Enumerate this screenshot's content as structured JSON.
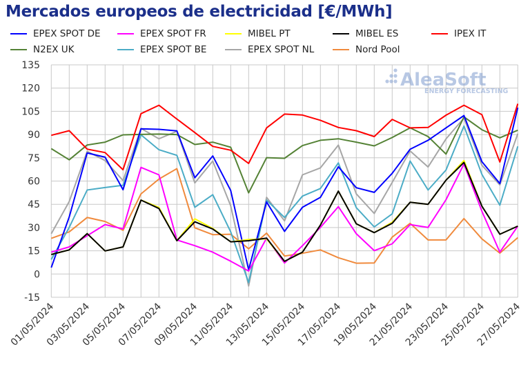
{
  "title": "Mercados europeos de electricidad [€/MWh]",
  "watermark": {
    "brand": "AleaSoft",
    "tagline": "ENERGY FORECASTING"
  },
  "chart_data": {
    "type": "line",
    "title": "Mercados europeos de electricidad [€/MWh]",
    "xlabel": "",
    "ylabel": "",
    "ylim": [
      -15,
      135
    ],
    "yticks": [
      -15,
      0,
      15,
      30,
      45,
      60,
      75,
      90,
      105,
      120,
      135
    ],
    "grid": true,
    "legend_position": "top",
    "x": [
      "01/05/2024",
      "02/05/2024",
      "03/05/2024",
      "04/05/2024",
      "05/05/2024",
      "06/05/2024",
      "07/05/2024",
      "08/05/2024",
      "09/05/2024",
      "10/05/2024",
      "11/05/2024",
      "12/05/2024",
      "13/05/2024",
      "14/05/2024",
      "15/05/2024",
      "16/05/2024",
      "17/05/2024",
      "18/05/2024",
      "19/05/2024",
      "20/05/2024",
      "21/05/2024",
      "22/05/2024",
      "23/05/2024",
      "24/05/2024",
      "25/05/2024",
      "26/05/2024",
      "27/05/2024"
    ],
    "xtick_labels": [
      "01/05/2024",
      "03/05/2024",
      "05/05/2024",
      "07/05/2024",
      "09/05/2024",
      "11/05/2024",
      "13/05/2024",
      "15/05/2024",
      "17/05/2024",
      "19/05/2024",
      "21/05/2024",
      "23/05/2024",
      "25/05/2024",
      "27/05/2024"
    ],
    "series": [
      {
        "name": "EPEX SPOT DE",
        "color": "#0000ff",
        "values": [
          4.2,
          36.8,
          78.1,
          75.4,
          54.4,
          93.7,
          93.4,
          92.4,
          62.1,
          76.2,
          53.9,
          2.7,
          46.5,
          27.5,
          43.1,
          49.5,
          69.2,
          55.7,
          52.7,
          65.0,
          80.5,
          86.3,
          94.3,
          102.3,
          72.5,
          58.4,
          107.4
        ]
      },
      {
        "name": "EPEX SPOT FR",
        "color": "#ff00ff",
        "values": [
          14.1,
          17.5,
          24.7,
          31.9,
          29.1,
          68.8,
          64.0,
          22.0,
          18.3,
          14.1,
          8.3,
          1.9,
          23.2,
          7.1,
          18.3,
          30.1,
          43.5,
          26.0,
          15.1,
          19.5,
          31.9,
          30.1,
          48.0,
          71.0,
          40.5,
          14.1,
          30.9
        ]
      },
      {
        "name": "MIBEL PT",
        "color": "#ffff00",
        "values": [
          12.6,
          15.6,
          26.1,
          14.9,
          17.5,
          47.7,
          43.0,
          21.5,
          35.6,
          29.4,
          20.8,
          22.3,
          22.7,
          8.2,
          14.1,
          31.6,
          53.5,
          32.4,
          26.7,
          33.4,
          46.3,
          45.0,
          60.6,
          73.2,
          43.8,
          25.7,
          30.9
        ]
      },
      {
        "name": "MIBEL ES",
        "color": "#000000",
        "values": [
          12.6,
          15.6,
          26.1,
          14.9,
          17.5,
          47.7,
          42.3,
          21.5,
          33.7,
          29.0,
          20.8,
          21.5,
          23.2,
          8.2,
          14.1,
          31.6,
          53.5,
          32.4,
          26.7,
          32.7,
          46.3,
          45.0,
          60.6,
          72.0,
          43.8,
          25.7,
          30.9
        ]
      },
      {
        "name": "IPEX IT",
        "color": "#ff0000",
        "values": [
          89.5,
          92.5,
          80.6,
          78.4,
          67.3,
          103.5,
          108.9,
          100.0,
          91.3,
          82.4,
          79.9,
          71.4,
          94.3,
          103.2,
          102.6,
          99.2,
          94.6,
          92.5,
          88.7,
          99.8,
          94.3,
          94.6,
          102.5,
          108.9,
          102.8,
          72.3,
          109.9
        ]
      },
      {
        "name": "N2EX UK",
        "color": "#548235",
        "values": [
          80.9,
          73.7,
          83.3,
          85.1,
          89.8,
          90.1,
          90.3,
          90.0,
          83.6,
          85.1,
          81.8,
          52.4,
          75.1,
          74.7,
          82.9,
          86.3,
          87.3,
          85.1,
          82.7,
          88.1,
          94.3,
          88.7,
          77.4,
          101.4,
          93.1,
          87.9,
          92.8
        ]
      },
      {
        "name": "EPEX SPOT BE",
        "color": "#4bacc6",
        "values": [
          9.4,
          30.1,
          54.2,
          55.8,
          57.3,
          89.8,
          80.2,
          76.6,
          43.1,
          51.2,
          27.2,
          -5.5,
          47.7,
          36.5,
          50.3,
          55.2,
          71.7,
          42.8,
          30.4,
          38.8,
          72.9,
          54.2,
          67.1,
          95.5,
          64.3,
          44.4,
          82.4
        ]
      },
      {
        "name": "EPEX SPOT NL",
        "color": "#a6a6a6",
        "values": [
          26.0,
          46.8,
          79.2,
          73.2,
          60.3,
          94.0,
          87.3,
          92.1,
          58.8,
          72.9,
          44.0,
          -7.7,
          49.5,
          34.3,
          64.0,
          68.5,
          83.2,
          51.7,
          39.1,
          59.1,
          79.4,
          69.1,
          87.2,
          100.7,
          70.2,
          57.5,
          90.6
        ]
      },
      {
        "name": "Nord Pool",
        "color": "#f08a3c",
        "values": [
          23.0,
          27.2,
          36.5,
          33.9,
          28.2,
          51.7,
          61.3,
          68.0,
          29.8,
          25.4,
          25.7,
          16.3,
          26.4,
          11.6,
          13.4,
          15.6,
          10.5,
          7.0,
          7.1,
          23.8,
          32.7,
          22.0,
          22.0,
          35.8,
          22.7,
          13.5,
          23.5
        ]
      }
    ]
  }
}
